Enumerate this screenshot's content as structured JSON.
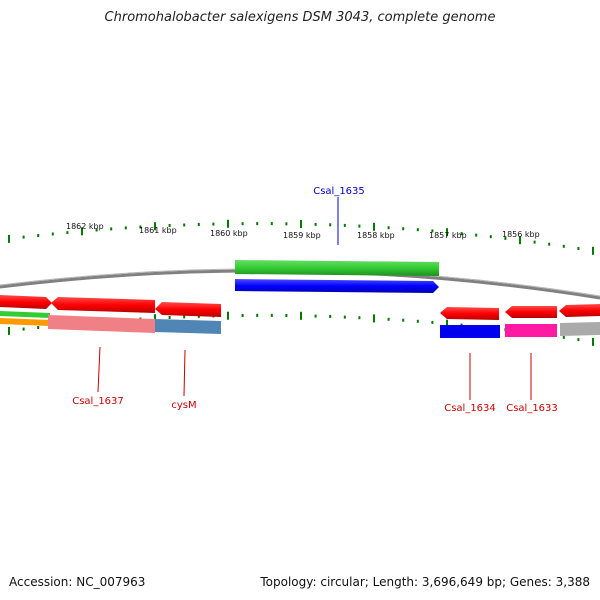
{
  "title": "Chromohalobacter salexigens DSM 3043, complete genome",
  "footer": {
    "accession": "Accession: NC_007963",
    "summary": "Topology: circular; Length: 3,696,649 bp; Genes: 3,388"
  },
  "scale_labels": [
    "1862 kbp",
    "1861 kbp",
    "1860 kbp",
    "1859 kbp",
    "1858 kbp",
    "1857 kbp",
    "1856 kbp"
  ],
  "gene_labels": {
    "csal_1635": "Csal_1635",
    "csal_1637": "Csal_1637",
    "cysm": "cysM",
    "csal_1634": "Csal_1634",
    "csal_1633": "Csal_1633"
  },
  "colors": {
    "forward_cds": "#ff0000",
    "reverse_label": "#cc0000",
    "blue_label": "#0000cc",
    "green_track": "#33cc33",
    "blue_track": "#0000ff",
    "pink_track": "#ff66a3",
    "steel_track": "#4f86b5",
    "magenta_track": "#ff1aa3",
    "gray_track": "#aaaaaa",
    "orange_track": "#ff9900",
    "backbone": "#808080",
    "tick": "#007a00"
  }
}
